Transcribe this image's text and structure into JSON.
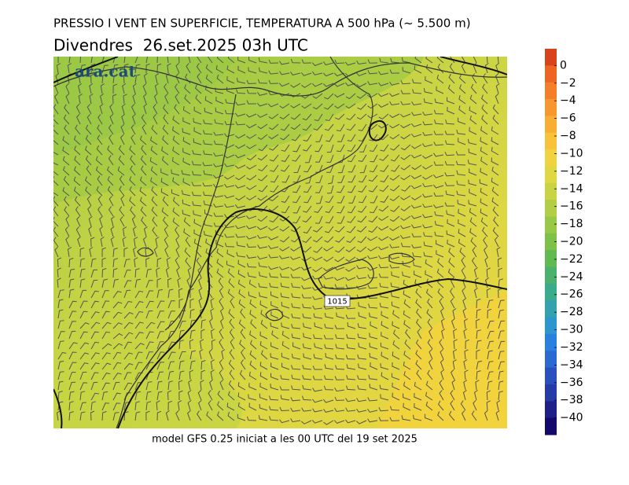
{
  "header": {
    "title": "PRESSIO I VENT EN SUPERFICIE, TEMPERATURA A 500 hPa (~ 5.500 m)",
    "subtitle": "Divendres  26.set.2025 03h UTC"
  },
  "logo": "ara.cat",
  "isobar_label": "1015",
  "footer": "model GFS 0.25 iniciat a les 00 UTC del 19 set 2025",
  "colorbar": {
    "colors": [
      "#d8431c",
      "#ef6420",
      "#f57e28",
      "#f7972e",
      "#f9ae33",
      "#f8c339",
      "#f0d33f",
      "#e0d843",
      "#c9d444",
      "#b1ce45",
      "#97c846",
      "#7dc149",
      "#62b952",
      "#4bb16c",
      "#3bab8e",
      "#33a2ae",
      "#2c96cf",
      "#2a80de",
      "#2a68d2",
      "#2a50bf",
      "#263aa8",
      "#1e2088",
      "#14086a"
    ],
    "ticks": [
      {
        "value": 0,
        "label": "0"
      },
      {
        "value": -2,
        "label": "−2"
      },
      {
        "value": -4,
        "label": "−4"
      },
      {
        "value": -6,
        "label": "−6"
      },
      {
        "value": -8,
        "label": "−8"
      },
      {
        "value": -10,
        "label": "−10"
      },
      {
        "value": -12,
        "label": "−12"
      },
      {
        "value": -14,
        "label": "−14"
      },
      {
        "value": -16,
        "label": "−16"
      },
      {
        "value": -18,
        "label": "−18"
      },
      {
        "value": -20,
        "label": "−20"
      },
      {
        "value": -22,
        "label": "−22"
      },
      {
        "value": -24,
        "label": "−24"
      },
      {
        "value": -26,
        "label": "−26"
      },
      {
        "value": -28,
        "label": "−28"
      },
      {
        "value": -30,
        "label": "−30"
      },
      {
        "value": -32,
        "label": "−32"
      },
      {
        "value": -34,
        "label": "−34"
      },
      {
        "value": -36,
        "label": "−36"
      },
      {
        "value": -38,
        "label": "−38"
      },
      {
        "value": -40,
        "label": "−40"
      }
    ]
  }
}
